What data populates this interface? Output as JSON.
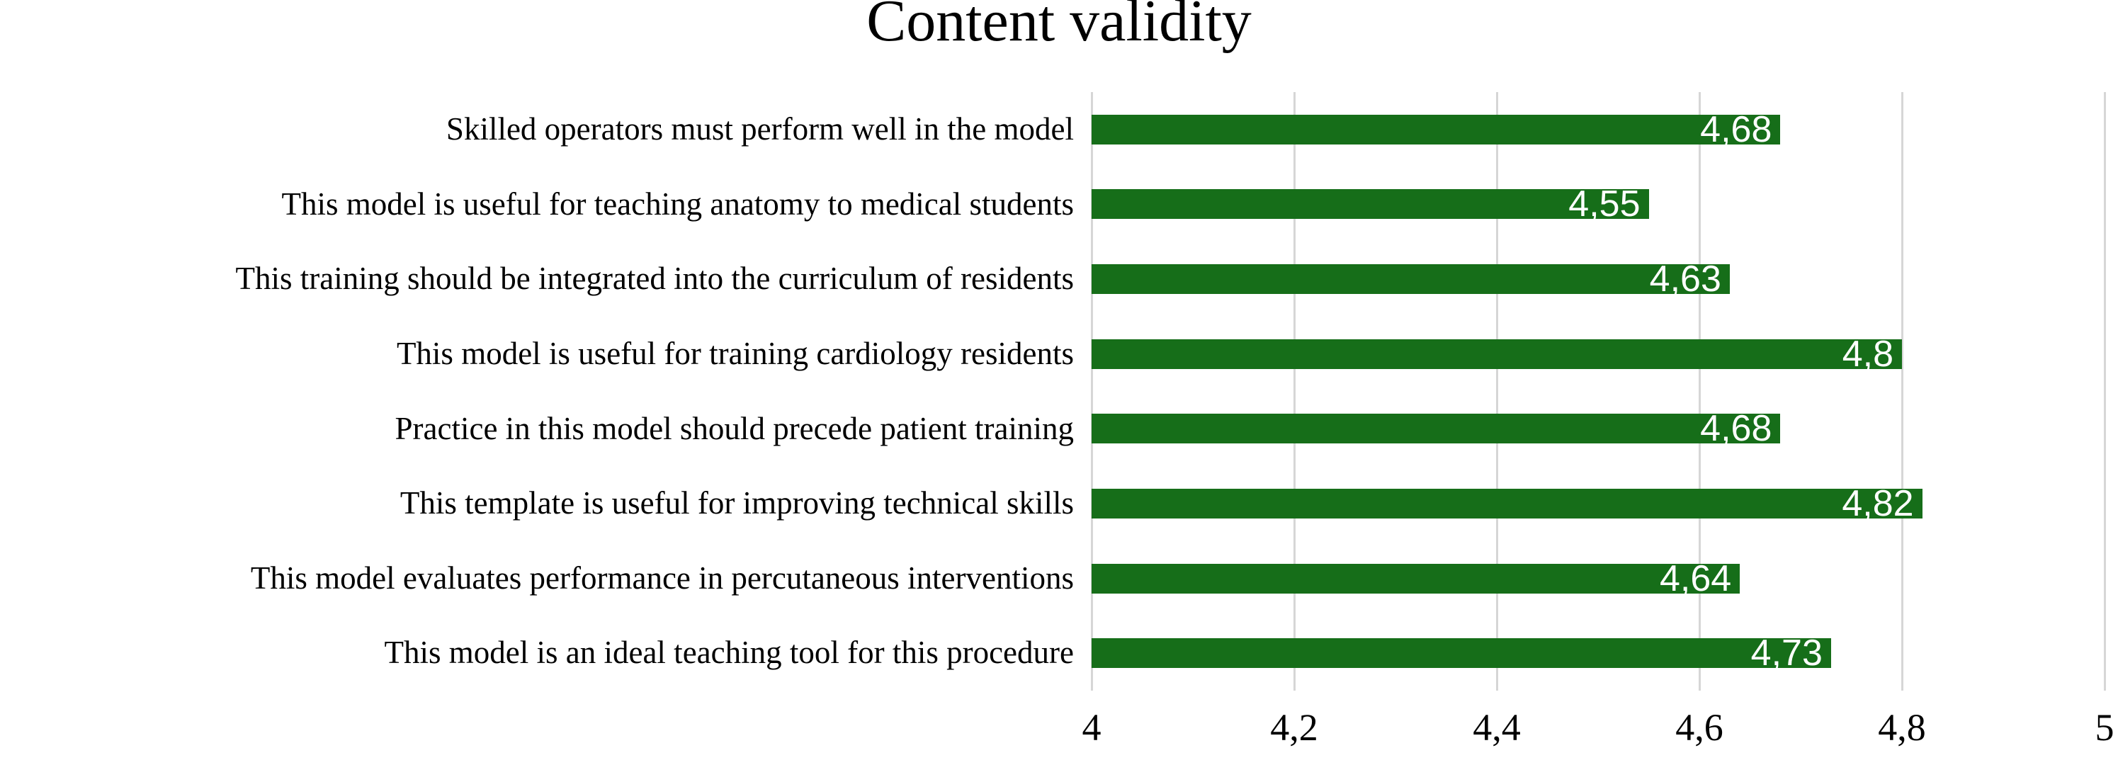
{
  "chart_data": {
    "type": "bar",
    "orientation": "horizontal",
    "title": "Content validity",
    "categories": [
      "Skilled operators must perform well in the model",
      "This model is useful for teaching anatomy to medical students",
      "This training should be integrated into the curriculum of residents",
      "This model is useful for training cardiology residents",
      "Practice in this model should precede patient training",
      "This template is useful for improving technical skills",
      "This model evaluates performance in percutaneous interventions",
      "This model is an ideal teaching tool for this procedure"
    ],
    "values": [
      4.68,
      4.55,
      4.63,
      4.8,
      4.68,
      4.82,
      4.64,
      4.73
    ],
    "value_labels": [
      "4,68",
      "4,55",
      "4,63",
      "4,8",
      "4,68",
      "4,82",
      "4,64",
      "4,73"
    ],
    "xlabel": "",
    "ylabel": "",
    "xlim": [
      4,
      5
    ],
    "x_ticks": [
      {
        "value": 4.0,
        "label": "4"
      },
      {
        "value": 4.2,
        "label": "4,2"
      },
      {
        "value": 4.4,
        "label": "4,4"
      },
      {
        "value": 4.6,
        "label": "4,6"
      },
      {
        "value": 4.8,
        "label": "4,8"
      },
      {
        "value": 5.0,
        "label": "5"
      }
    ],
    "grid": true,
    "legend": "none",
    "bar_color": "#166E19",
    "gridline_color": "#D6D6D6",
    "value_label_color": "#FFFFFF",
    "text_color": "#000000"
  }
}
